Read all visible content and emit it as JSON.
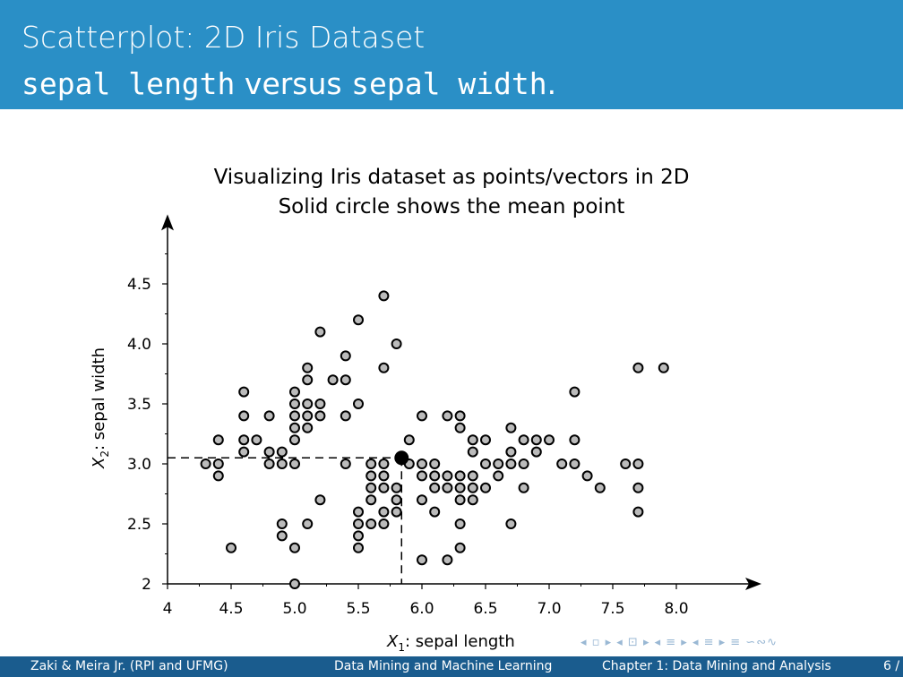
{
  "slide": {
    "title": "Scatterplot: 2D Iris Dataset",
    "subtitle_part1": "sepal length",
    "subtitle_part2": " versus ",
    "subtitle_part3": "sepal width",
    "subtitle_part4": "."
  },
  "footer": {
    "authors": "Zaki & Meira Jr.  (RPI and UFMG)",
    "book": "Data Mining and Machine Learning",
    "chapter": "Chapter 1: Data Mining and Analysis",
    "page": "6 /"
  },
  "nav_symbols": "◂ ▫ ▸ ◂ ⊡ ▸ ◂ ≡ ▸ ◂ ≡ ▸   ≡   ∽∾∿",
  "colors": {
    "header": "#2a8fc6",
    "footer": "#1a5c8e",
    "point_fill": "#bbbbbb",
    "mean_fill": "#000000"
  },
  "chart_data": {
    "type": "scatter",
    "title": "Visualizing Iris dataset as points/vectors in 2D",
    "subtitle": "Solid circle shows the mean point",
    "xlabel_symbol": "X",
    "xlabel_sub": "1",
    "xlabel_text": ": sepal length",
    "ylabel_symbol": "X",
    "ylabel_sub": "2",
    "ylabel_text": ": sepal width",
    "xlim": [
      4,
      8.5
    ],
    "ylim": [
      2,
      4.9
    ],
    "x_ticks": [
      4,
      4.5,
      5,
      5.5,
      6,
      6.5,
      7,
      7.5,
      8
    ],
    "x_tick_labels": [
      "4",
      "4.5",
      "5.0",
      "5.5",
      "6.0",
      "6.5",
      "7.0",
      "7.5",
      "8.0"
    ],
    "y_ticks": [
      2,
      2.5,
      3,
      3.5,
      4,
      4.5
    ],
    "y_tick_labels": [
      "2",
      "2.5",
      "3.0",
      "3.5",
      "4.0",
      "4.5"
    ],
    "mean": [
      5.84,
      3.05
    ],
    "points": [
      [
        4.3,
        3.0
      ],
      [
        4.4,
        3.2
      ],
      [
        4.4,
        3.0
      ],
      [
        4.4,
        2.9
      ],
      [
        4.5,
        2.3
      ],
      [
        4.6,
        3.6
      ],
      [
        4.6,
        3.4
      ],
      [
        4.6,
        3.2
      ],
      [
        4.6,
        3.1
      ],
      [
        4.7,
        3.2
      ],
      [
        4.8,
        3.4
      ],
      [
        4.8,
        3.1
      ],
      [
        4.8,
        3.0
      ],
      [
        4.9,
        3.1
      ],
      [
        4.9,
        3.0
      ],
      [
        4.9,
        2.5
      ],
      [
        4.9,
        2.4
      ],
      [
        5.0,
        3.6
      ],
      [
        5.0,
        3.5
      ],
      [
        5.0,
        3.4
      ],
      [
        5.0,
        3.3
      ],
      [
        5.0,
        3.2
      ],
      [
        5.0,
        3.0
      ],
      [
        5.0,
        2.3
      ],
      [
        5.0,
        2.0
      ],
      [
        5.1,
        3.8
      ],
      [
        5.1,
        3.7
      ],
      [
        5.1,
        3.5
      ],
      [
        5.1,
        3.4
      ],
      [
        5.1,
        3.3
      ],
      [
        5.1,
        2.5
      ],
      [
        5.2,
        4.1
      ],
      [
        5.2,
        3.5
      ],
      [
        5.2,
        3.4
      ],
      [
        5.2,
        2.7
      ],
      [
        5.3,
        3.7
      ],
      [
        5.4,
        3.9
      ],
      [
        5.4,
        3.7
      ],
      [
        5.4,
        3.4
      ],
      [
        5.4,
        3.0
      ],
      [
        5.5,
        4.2
      ],
      [
        5.5,
        3.5
      ],
      [
        5.5,
        2.6
      ],
      [
        5.5,
        2.5
      ],
      [
        5.5,
        2.4
      ],
      [
        5.5,
        2.3
      ],
      [
        5.6,
        3.0
      ],
      [
        5.6,
        2.9
      ],
      [
        5.6,
        2.8
      ],
      [
        5.6,
        2.7
      ],
      [
        5.6,
        2.5
      ],
      [
        5.7,
        4.4
      ],
      [
        5.7,
        3.8
      ],
      [
        5.7,
        3.0
      ],
      [
        5.7,
        2.9
      ],
      [
        5.7,
        2.8
      ],
      [
        5.7,
        2.6
      ],
      [
        5.7,
        2.5
      ],
      [
        5.8,
        4.0
      ],
      [
        5.8,
        2.8
      ],
      [
        5.8,
        2.7
      ],
      [
        5.8,
        2.6
      ],
      [
        5.9,
        3.2
      ],
      [
        5.9,
        3.0
      ],
      [
        6.0,
        3.4
      ],
      [
        6.0,
        3.0
      ],
      [
        6.0,
        2.9
      ],
      [
        6.0,
        2.7
      ],
      [
        6.0,
        2.2
      ],
      [
        6.1,
        3.0
      ],
      [
        6.1,
        2.9
      ],
      [
        6.1,
        2.8
      ],
      [
        6.1,
        2.6
      ],
      [
        6.2,
        3.4
      ],
      [
        6.2,
        2.9
      ],
      [
        6.2,
        2.8
      ],
      [
        6.2,
        2.2
      ],
      [
        6.3,
        3.4
      ],
      [
        6.3,
        3.3
      ],
      [
        6.3,
        2.9
      ],
      [
        6.3,
        2.8
      ],
      [
        6.3,
        2.7
      ],
      [
        6.3,
        2.5
      ],
      [
        6.3,
        2.3
      ],
      [
        6.4,
        3.2
      ],
      [
        6.4,
        3.1
      ],
      [
        6.4,
        2.9
      ],
      [
        6.4,
        2.8
      ],
      [
        6.4,
        2.7
      ],
      [
        6.5,
        3.2
      ],
      [
        6.5,
        3.0
      ],
      [
        6.5,
        2.8
      ],
      [
        6.6,
        3.0
      ],
      [
        6.6,
        2.9
      ],
      [
        6.7,
        3.3
      ],
      [
        6.7,
        3.1
      ],
      [
        6.7,
        3.0
      ],
      [
        6.7,
        2.5
      ],
      [
        6.8,
        3.2
      ],
      [
        6.8,
        3.0
      ],
      [
        6.8,
        2.8
      ],
      [
        6.9,
        3.2
      ],
      [
        6.9,
        3.1
      ],
      [
        7.0,
        3.2
      ],
      [
        7.1,
        3.0
      ],
      [
        7.2,
        3.6
      ],
      [
        7.2,
        3.2
      ],
      [
        7.2,
        3.0
      ],
      [
        7.3,
        2.9
      ],
      [
        7.4,
        2.8
      ],
      [
        7.6,
        3.0
      ],
      [
        7.7,
        3.8
      ],
      [
        7.7,
        3.0
      ],
      [
        7.7,
        2.8
      ],
      [
        7.7,
        2.6
      ],
      [
        7.9,
        3.8
      ]
    ]
  }
}
